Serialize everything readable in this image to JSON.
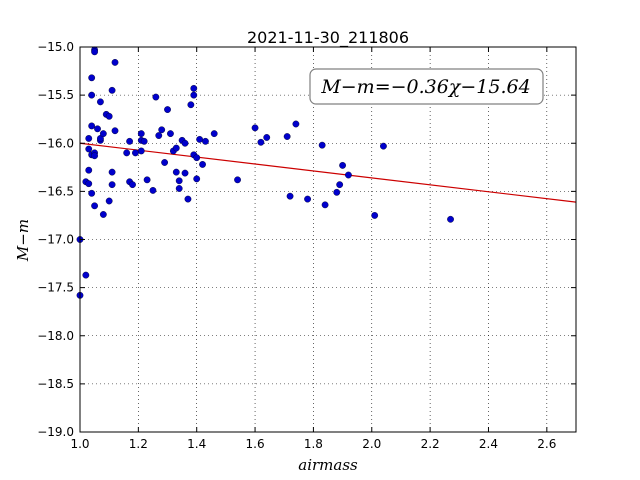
{
  "chart_data": {
    "type": "scatter",
    "title": "2021-11-30_211806",
    "xlabel": "airmass",
    "ylabel": "M−m",
    "xlim": [
      1.0,
      2.7
    ],
    "ylim": [
      -19.0,
      -15.0
    ],
    "xticks": [
      1.0,
      1.2,
      1.4,
      1.6,
      1.8,
      2.0,
      2.2,
      2.4,
      2.6
    ],
    "xtick_labels": [
      "1.0",
      "1.2",
      "1.4",
      "1.6",
      "1.8",
      "2.0",
      "2.2",
      "2.4",
      "2.6"
    ],
    "yticks": [
      -15.0,
      -15.5,
      -16.0,
      -16.5,
      -17.0,
      -17.5,
      -18.0,
      -18.5,
      -19.0
    ],
    "ytick_labels": [
      "−15.0",
      "−15.5",
      "−16.0",
      "−16.5",
      "−17.0",
      "−17.5",
      "−18.0",
      "−18.5",
      "−19.0"
    ],
    "grid": true,
    "point_color": "#0000cc",
    "line_color": "#cc0000",
    "fit": {
      "slope": -0.36,
      "intercept": -15.64,
      "x_range": [
        1.0,
        2.7
      ]
    },
    "annotation": "M−m=−0.36χ−15.64",
    "annotation_position": "top-right",
    "points": [
      [
        1.0,
        -17.0
      ],
      [
        1.0,
        -17.58
      ],
      [
        1.02,
        -17.37
      ],
      [
        1.02,
        -16.4
      ],
      [
        1.03,
        -16.42
      ],
      [
        1.03,
        -16.28
      ],
      [
        1.03,
        -16.06
      ],
      [
        1.03,
        -15.95
      ],
      [
        1.04,
        -16.12
      ],
      [
        1.04,
        -16.52
      ],
      [
        1.04,
        -15.32
      ],
      [
        1.04,
        -15.5
      ],
      [
        1.04,
        -15.82
      ],
      [
        1.05,
        -16.1
      ],
      [
        1.05,
        -16.13
      ],
      [
        1.05,
        -16.65
      ],
      [
        1.05,
        -15.03
      ],
      [
        1.05,
        -15.05
      ],
      [
        1.06,
        -15.85
      ],
      [
        1.07,
        -15.97
      ],
      [
        1.07,
        -15.57
      ],
      [
        1.07,
        -15.95
      ],
      [
        1.08,
        -15.9
      ],
      [
        1.08,
        -16.74
      ],
      [
        1.09,
        -15.7
      ],
      [
        1.1,
        -15.72
      ],
      [
        1.1,
        -16.6
      ],
      [
        1.11,
        -15.45
      ],
      [
        1.11,
        -16.43
      ],
      [
        1.11,
        -16.3
      ],
      [
        1.12,
        -15.16
      ],
      [
        1.12,
        -15.87
      ],
      [
        1.16,
        -16.1
      ],
      [
        1.17,
        -16.4
      ],
      [
        1.17,
        -15.98
      ],
      [
        1.18,
        -16.43
      ],
      [
        1.19,
        -16.1
      ],
      [
        1.21,
        -16.08
      ],
      [
        1.21,
        -15.9
      ],
      [
        1.21,
        -15.97
      ],
      [
        1.22,
        -15.98
      ],
      [
        1.23,
        -16.38
      ],
      [
        1.25,
        -16.49
      ],
      [
        1.26,
        -15.52
      ],
      [
        1.27,
        -15.92
      ],
      [
        1.28,
        -15.86
      ],
      [
        1.29,
        -16.2
      ],
      [
        1.3,
        -15.65
      ],
      [
        1.31,
        -15.9
      ],
      [
        1.32,
        -16.08
      ],
      [
        1.33,
        -16.05
      ],
      [
        1.33,
        -16.3
      ],
      [
        1.34,
        -16.39
      ],
      [
        1.34,
        -16.47
      ],
      [
        1.35,
        -15.97
      ],
      [
        1.36,
        -16.0
      ],
      [
        1.36,
        -16.31
      ],
      [
        1.37,
        -16.58
      ],
      [
        1.38,
        -15.6
      ],
      [
        1.39,
        -15.5
      ],
      [
        1.39,
        -15.43
      ],
      [
        1.39,
        -16.12
      ],
      [
        1.4,
        -16.15
      ],
      [
        1.4,
        -16.37
      ],
      [
        1.41,
        -15.96
      ],
      [
        1.42,
        -16.22
      ],
      [
        1.43,
        -15.98
      ],
      [
        1.46,
        -15.9
      ],
      [
        1.54,
        -16.38
      ],
      [
        1.6,
        -15.84
      ],
      [
        1.62,
        -15.99
      ],
      [
        1.64,
        -15.94
      ],
      [
        1.71,
        -15.93
      ],
      [
        1.72,
        -16.55
      ],
      [
        1.74,
        -15.8
      ],
      [
        1.78,
        -16.58
      ],
      [
        1.83,
        -16.02
      ],
      [
        1.84,
        -16.64
      ],
      [
        1.88,
        -16.51
      ],
      [
        1.89,
        -16.43
      ],
      [
        1.9,
        -16.23
      ],
      [
        1.92,
        -16.33
      ],
      [
        2.01,
        -16.75
      ],
      [
        2.04,
        -16.03
      ],
      [
        2.27,
        -16.79
      ]
    ]
  }
}
